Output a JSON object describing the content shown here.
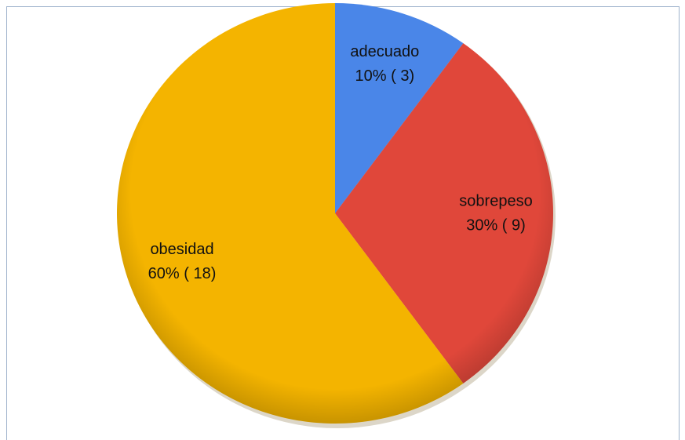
{
  "chart_data": {
    "type": "pie",
    "categories": [
      "adecuado",
      "sobrepeso",
      "obesidad"
    ],
    "values": [
      10,
      30,
      60
    ],
    "value_labels": [
      "10% ( 3)",
      "30% ( 9)",
      "60% ( 18)"
    ],
    "colors": [
      "#4a86e8",
      "#e0473a",
      "#f4b400"
    ]
  }
}
